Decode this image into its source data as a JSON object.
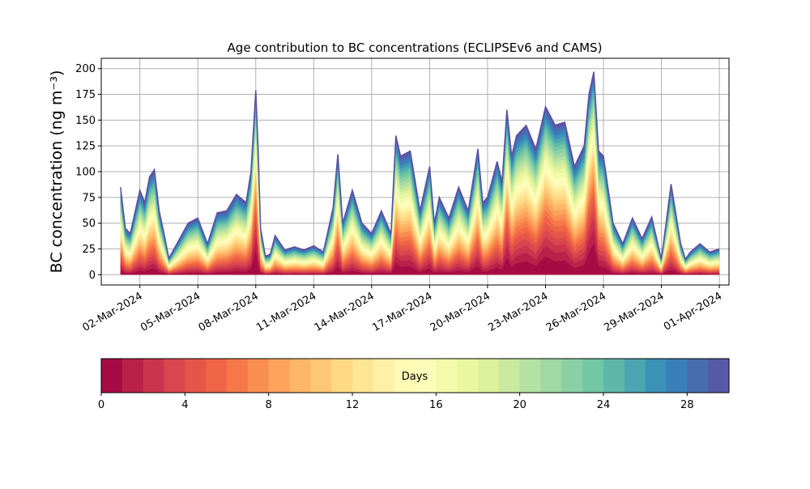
{
  "chart_data": [
    {
      "type": "area",
      "stacked": true,
      "title": "Age contribution to BC concentrations (ECLIPSEv6 and CAMS)",
      "xlabel": "",
      "ylabel": "BC concentration (ng m⁻³)",
      "ylim": [
        -10,
        210
      ],
      "xlim": [
        "2024-02-29T00:00",
        "2024-04-01T12:00"
      ],
      "grid": true,
      "y_ticks": [
        0,
        25,
        50,
        75,
        100,
        125,
        150,
        175,
        200
      ],
      "x_tick_dates": [
        "2024-03-02",
        "2024-03-05",
        "2024-03-08",
        "2024-03-11",
        "2024-03-14",
        "2024-03-17",
        "2024-03-20",
        "2024-03-23",
        "2024-03-26",
        "2024-03-29",
        "2024-04-01"
      ],
      "x_tick_labels": [
        "02-Mar-2024",
        "05-Mar-2024",
        "08-Mar-2024",
        "11-Mar-2024",
        "14-Mar-2024",
        "17-Mar-2024",
        "20-Mar-2024",
        "23-Mar-2024",
        "26-Mar-2024",
        "29-Mar-2024",
        "01-Apr-2024"
      ],
      "total": {
        "x": [
          "2024-03-01T00:00",
          "2024-03-01T06:00",
          "2024-03-01T12:00",
          "2024-03-02T00:00",
          "2024-03-02T06:00",
          "2024-03-02T12:00",
          "2024-03-02T18:00",
          "2024-03-03T00:00",
          "2024-03-03T06:00",
          "2024-03-03T12:00",
          "2024-03-04T00:00",
          "2024-03-04T12:00",
          "2024-03-05T00:00",
          "2024-03-05T12:00",
          "2024-03-06T00:00",
          "2024-03-06T12:00",
          "2024-03-07T00:00",
          "2024-03-07T12:00",
          "2024-03-07T18:00",
          "2024-03-08T00:00",
          "2024-03-08T03:00",
          "2024-03-08T06:00",
          "2024-03-08T12:00",
          "2024-03-08T18:00",
          "2024-03-09T00:00",
          "2024-03-09T12:00",
          "2024-03-10T00:00",
          "2024-03-10T12:00",
          "2024-03-11T00:00",
          "2024-03-11T12:00",
          "2024-03-12T00:00",
          "2024-03-12T06:00",
          "2024-03-12T12:00",
          "2024-03-13T00:00",
          "2024-03-13T12:00",
          "2024-03-14T00:00",
          "2024-03-14T12:00",
          "2024-03-15T00:00",
          "2024-03-15T06:00",
          "2024-03-15T12:00",
          "2024-03-16T00:00",
          "2024-03-16T12:00",
          "2024-03-17T00:00",
          "2024-03-17T06:00",
          "2024-03-17T12:00",
          "2024-03-18T00:00",
          "2024-03-18T12:00",
          "2024-03-19T00:00",
          "2024-03-19T12:00",
          "2024-03-19T18:00",
          "2024-03-20T00:00",
          "2024-03-20T12:00",
          "2024-03-20T18:00",
          "2024-03-21T00:00",
          "2024-03-21T06:00",
          "2024-03-21T12:00",
          "2024-03-22T00:00",
          "2024-03-22T12:00",
          "2024-03-23T00:00",
          "2024-03-23T12:00",
          "2024-03-24T00:00",
          "2024-03-24T12:00",
          "2024-03-25T00:00",
          "2024-03-25T06:00",
          "2024-03-25T12:00",
          "2024-03-25T18:00",
          "2024-03-26T00:00",
          "2024-03-26T12:00",
          "2024-03-27T00:00",
          "2024-03-27T12:00",
          "2024-03-28T00:00",
          "2024-03-28T12:00",
          "2024-03-29T00:00",
          "2024-03-29T12:00",
          "2024-03-30T00:00",
          "2024-03-30T06:00",
          "2024-03-30T12:00",
          "2024-03-31T00:00",
          "2024-03-31T12:00",
          "2024-04-01T00:00"
        ],
        "y": [
          85,
          45,
          40,
          82,
          70,
          95,
          102,
          62,
          40,
          16,
          33,
          50,
          55,
          30,
          60,
          62,
          78,
          70,
          100,
          179,
          120,
          45,
          18,
          20,
          38,
          24,
          27,
          24,
          28,
          22,
          65,
          117,
          50,
          82,
          50,
          40,
          62,
          40,
          135,
          115,
          120,
          62,
          105,
          50,
          75,
          55,
          85,
          62,
          122,
          70,
          75,
          110,
          90,
          160,
          115,
          135,
          145,
          122,
          163,
          145,
          148,
          105,
          125,
          175,
          197,
          120,
          115,
          50,
          30,
          55,
          35,
          56,
          15,
          88,
          30,
          15,
          22,
          30,
          22,
          25
        ]
      },
      "legend": "colorbar-bottom",
      "colorbar": {
        "label": "Days",
        "ticks": [
          0,
          4,
          8,
          12,
          16,
          20,
          24,
          28
        ],
        "min": 0,
        "max": 30,
        "bins": 30,
        "colormap": "Spectral"
      },
      "colors": {
        "spectral": [
          "#9e0142",
          "#d53e4f",
          "#f46d43",
          "#fdae61",
          "#fee08b",
          "#ffffbf",
          "#e6f598",
          "#abdda4",
          "#66c2a5",
          "#3288bd",
          "#5e4fa2"
        ],
        "grid": "#b0b0b0"
      }
    }
  ]
}
